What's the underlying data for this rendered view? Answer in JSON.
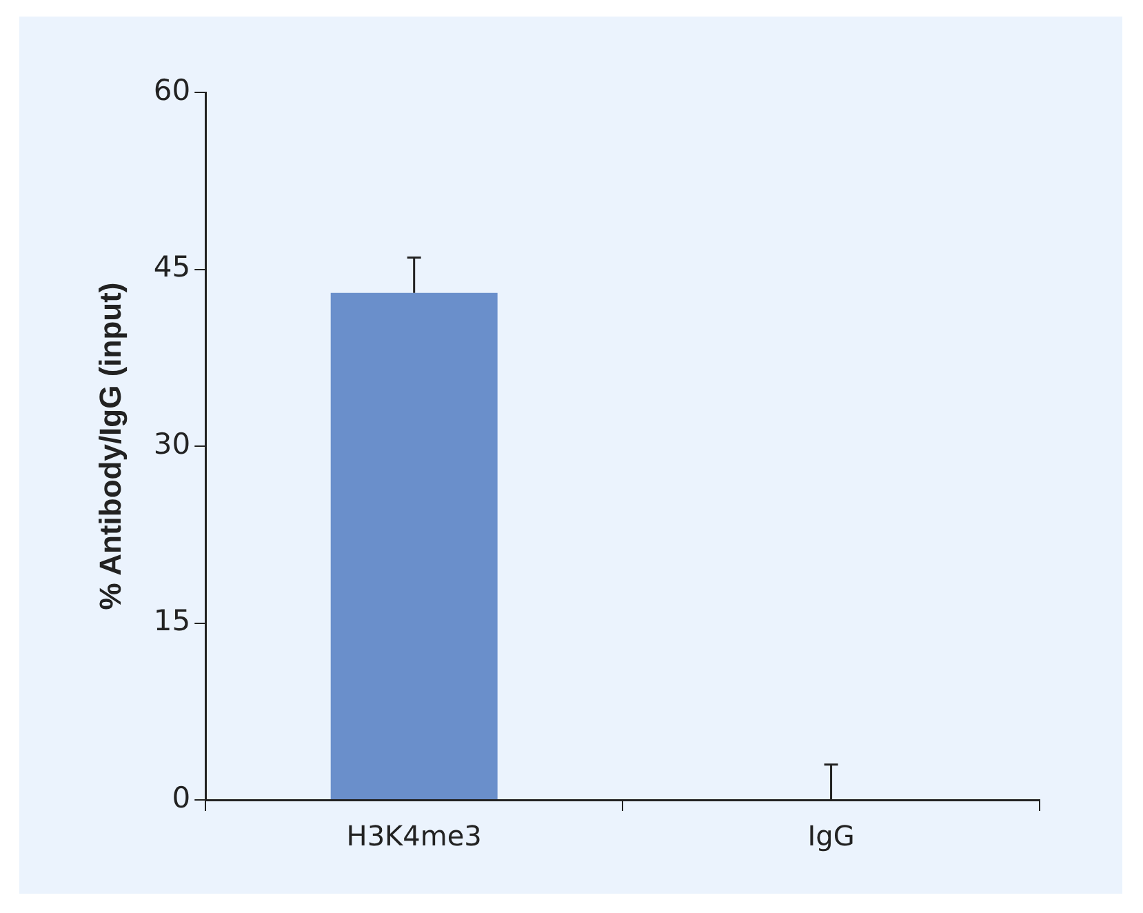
{
  "chart_data": {
    "type": "bar",
    "ylabel": "% Antibody/IgG (input)",
    "categories": [
      "H3K4me3",
      "IgG"
    ],
    "values": [
      43,
      0
    ],
    "errors": [
      [
        43,
        46
      ],
      [
        0,
        3
      ]
    ],
    "color": "#6a8fcb",
    "ylim": [
      0,
      60
    ],
    "yticks": [
      0,
      15,
      30,
      45,
      60
    ],
    "grid": false,
    "legend": false
  }
}
